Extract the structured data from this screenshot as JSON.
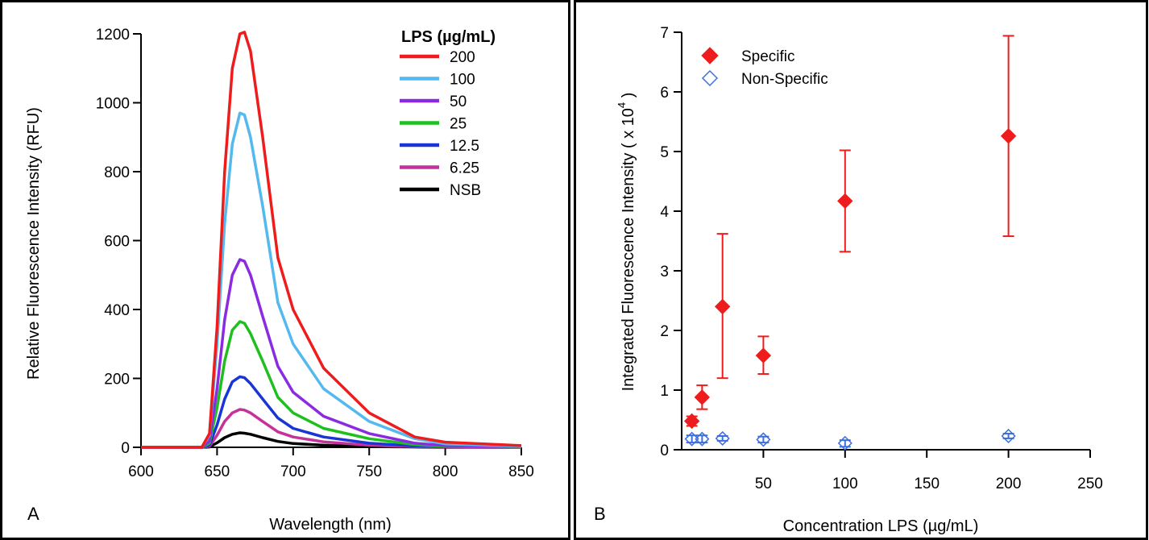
{
  "chart_data": [
    {
      "panel_label": "A",
      "type": "line",
      "xlabel": "Wavelength (nm)",
      "ylabel": "Relative Fluorescence Intensity (RFU)",
      "xlim": [
        600,
        850
      ],
      "ylim": [
        0,
        1200
      ],
      "xticks": [
        600,
        650,
        700,
        750,
        800,
        850
      ],
      "yticks": [
        0,
        200,
        400,
        600,
        800,
        1000,
        1200
      ],
      "grid": false,
      "legend_title": "LPS (µg/mL)",
      "legend_position": "top-right",
      "x": [
        600,
        640,
        645,
        650,
        655,
        660,
        665,
        668,
        672,
        680,
        690,
        700,
        720,
        750,
        780,
        800,
        850
      ],
      "series": [
        {
          "name": "200",
          "color": "#ee1c1c",
          "values": [
            0,
            0,
            40,
            350,
            800,
            1100,
            1200,
            1205,
            1150,
            900,
            550,
            400,
            230,
            100,
            30,
            15,
            5
          ]
        },
        {
          "name": "100",
          "color": "#53b9ee",
          "values": [
            0,
            0,
            35,
            300,
            650,
            880,
            970,
            965,
            900,
            700,
            420,
            300,
            170,
            75,
            25,
            10,
            3
          ]
        },
        {
          "name": "50",
          "color": "#8a2be2",
          "values": [
            0,
            0,
            18,
            170,
            370,
            500,
            545,
            540,
            500,
            380,
            235,
            160,
            90,
            40,
            12,
            5,
            2
          ]
        },
        {
          "name": "25",
          "color": "#1fbf1f",
          "values": [
            0,
            0,
            12,
            115,
            250,
            340,
            365,
            360,
            330,
            250,
            145,
            100,
            55,
            25,
            8,
            3,
            1
          ]
        },
        {
          "name": "12.5",
          "color": "#1a35d6",
          "values": [
            0,
            0,
            6,
            65,
            140,
            190,
            205,
            202,
            185,
            140,
            85,
            55,
            30,
            12,
            4,
            2,
            1
          ]
        },
        {
          "name": "6.25",
          "color": "#c4329a",
          "values": [
            0,
            0,
            3,
            35,
            75,
            100,
            110,
            108,
            100,
            75,
            45,
            30,
            16,
            6,
            2,
            1,
            0
          ]
        },
        {
          "name": "NSB",
          "color": "#000000",
          "values": [
            0,
            0,
            1,
            13,
            28,
            38,
            42,
            41,
            38,
            28,
            17,
            11,
            6,
            2,
            1,
            0,
            0
          ]
        }
      ]
    },
    {
      "panel_label": "B",
      "type": "scatter",
      "xlabel": "Concentration LPS (µg/mL)",
      "ylabel": "Integrated Fluorescence Intensity ( x 10",
      "ylabel_exponent": "4",
      "ylabel_close": " )",
      "xlim": [
        0,
        250
      ],
      "ylim": [
        0,
        7
      ],
      "xticks": [
        50,
        100,
        150,
        200,
        250
      ],
      "yticks": [
        0,
        1,
        2,
        3,
        4,
        5,
        6,
        7
      ],
      "grid": false,
      "legend_position": "top-left",
      "series": [
        {
          "name": "Specific",
          "color": "#ee1c1c",
          "marker": "filled-diamond",
          "x": [
            6.25,
            12.5,
            25,
            50,
            100,
            200
          ],
          "y": [
            0.48,
            0.88,
            2.4,
            1.58,
            4.17,
            5.26
          ],
          "err_low": [
            0.4,
            0.68,
            1.2,
            1.27,
            3.32,
            3.58
          ],
          "err_high": [
            0.56,
            1.08,
            3.62,
            1.9,
            5.02,
            6.94
          ]
        },
        {
          "name": "Non-Specific",
          "color": "#3b6fe0",
          "marker": "open-diamond",
          "x": [
            6.25,
            12.5,
            25,
            50,
            100,
            200
          ],
          "y": [
            0.18,
            0.18,
            0.19,
            0.17,
            0.11,
            0.23
          ],
          "err_low": [
            0.12,
            0.12,
            0.15,
            0.12,
            0.05,
            0.19
          ],
          "err_high": [
            0.24,
            0.24,
            0.23,
            0.22,
            0.16,
            0.27
          ]
        }
      ]
    }
  ]
}
